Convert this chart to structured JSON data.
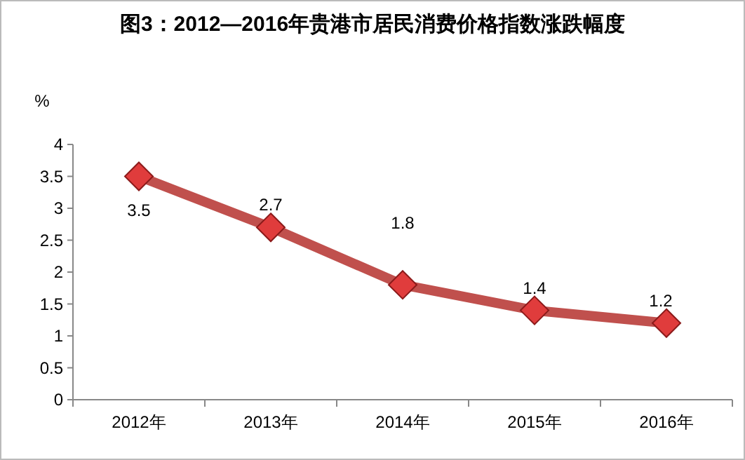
{
  "chart_data": {
    "type": "line",
    "title": "图3：2012—2016年贵港市居民消费价格指数涨跌幅度",
    "ylabel": "%",
    "categories": [
      "2012年",
      "2013年",
      "2014年",
      "2015年",
      "2016年"
    ],
    "series": [
      {
        "color": "#c0504d",
        "values": [
          3.5,
          2.7,
          1.8,
          1.4,
          1.2
        ]
      }
    ],
    "ylim": [
      0,
      4
    ],
    "yticks": [
      0,
      0.5,
      1,
      1.5,
      2,
      2.5,
      3,
      3.5,
      4
    ],
    "data_labels": true,
    "marker": "diamond",
    "line_style": "solid",
    "grid": false
  }
}
